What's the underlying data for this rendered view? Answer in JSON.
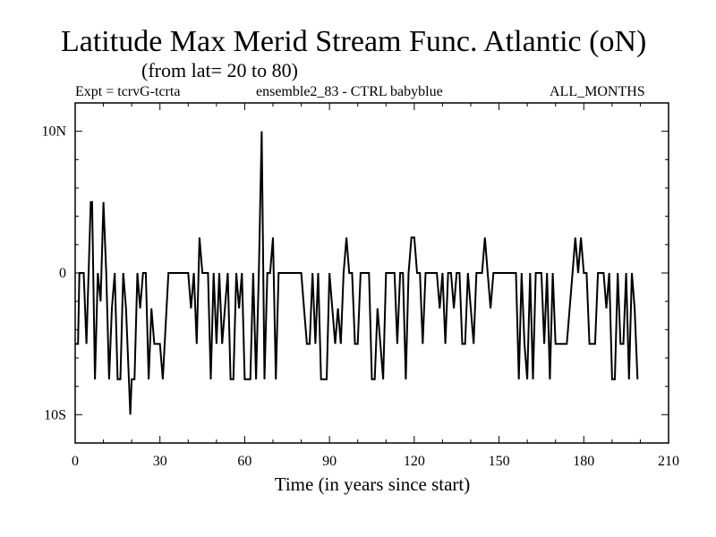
{
  "chart_data": {
    "type": "line",
    "title": "Latitude Max Merid Stream Func. Atlantic (oN)",
    "subtitle": "(from lat= 20 to 80)",
    "header_left": "Expt = tcrvG-tcrta",
    "header_center": "ensemble2_83 - CTRL babyblue",
    "header_right": "ALL_MONTHS",
    "xlabel": "Time (in years since start)",
    "ylabel": "",
    "xlim": [
      0,
      210
    ],
    "ylim": [
      -12,
      12
    ],
    "x_ticks": [
      0,
      30,
      60,
      90,
      120,
      150,
      180,
      210
    ],
    "x_tick_labels": [
      "0",
      "30",
      "60",
      "90",
      "120",
      "150",
      "180",
      "210"
    ],
    "y_ticks": [
      -10,
      0,
      10
    ],
    "y_tick_labels": [
      "10S",
      "0",
      "10N"
    ],
    "series": [
      {
        "name": "tcrvG-tcrta",
        "color": "#000000",
        "points": [
          [
            0,
            -5
          ],
          [
            1,
            -5
          ],
          [
            1.5,
            0
          ],
          [
            3,
            0
          ],
          [
            4,
            -5
          ],
          [
            5.5,
            5
          ],
          [
            6,
            5
          ],
          [
            7,
            -7.5
          ],
          [
            8,
            0
          ],
          [
            9,
            -2
          ],
          [
            10,
            5
          ],
          [
            11,
            0
          ],
          [
            12,
            -7.5
          ],
          [
            13,
            -2.5
          ],
          [
            14,
            0
          ],
          [
            15,
            -7.5
          ],
          [
            16,
            -7.5
          ],
          [
            17,
            0
          ],
          [
            18,
            -2.5
          ],
          [
            19,
            -7.5
          ],
          [
            19.5,
            -10
          ],
          [
            20,
            -7.5
          ],
          [
            21,
            -7.5
          ],
          [
            22,
            0
          ],
          [
            23,
            -2.5
          ],
          [
            24,
            0
          ],
          [
            25,
            0
          ],
          [
            26,
            -7.5
          ],
          [
            27,
            -2.5
          ],
          [
            28,
            -5
          ],
          [
            30,
            -5
          ],
          [
            31,
            -7.5
          ],
          [
            33,
            0
          ],
          [
            35,
            0
          ],
          [
            37,
            0
          ],
          [
            38,
            0
          ],
          [
            39,
            0
          ],
          [
            40,
            0
          ],
          [
            41,
            -2.5
          ],
          [
            42,
            0
          ],
          [
            43,
            -5
          ],
          [
            44,
            2.5
          ],
          [
            45,
            0
          ],
          [
            46,
            0
          ],
          [
            47,
            0
          ],
          [
            48,
            -7.5
          ],
          [
            49,
            0
          ],
          [
            50,
            -5
          ],
          [
            51,
            0
          ],
          [
            52,
            -5
          ],
          [
            53,
            -2.5
          ],
          [
            54,
            0
          ],
          [
            55,
            -7.5
          ],
          [
            56,
            -7.5
          ],
          [
            57,
            0
          ],
          [
            58,
            -2.5
          ],
          [
            59,
            0
          ],
          [
            60,
            -7.5
          ],
          [
            62,
            -7.5
          ],
          [
            63,
            0
          ],
          [
            64,
            -7.5
          ],
          [
            65,
            0
          ],
          [
            66,
            10
          ],
          [
            67,
            -7.5
          ],
          [
            68,
            0
          ],
          [
            69,
            0
          ],
          [
            70,
            2.5
          ],
          [
            71,
            -7.5
          ],
          [
            72,
            0
          ],
          [
            74,
            0
          ],
          [
            76,
            0
          ],
          [
            78,
            0
          ],
          [
            80,
            0
          ],
          [
            81,
            -2.5
          ],
          [
            82,
            -5
          ],
          [
            83,
            -5
          ],
          [
            84,
            0
          ],
          [
            85,
            -5
          ],
          [
            86,
            0
          ],
          [
            87,
            -7.5
          ],
          [
            89,
            -7.5
          ],
          [
            90,
            0
          ],
          [
            91,
            -2.5
          ],
          [
            92,
            -5
          ],
          [
            93,
            -2.5
          ],
          [
            94,
            -5
          ],
          [
            95,
            0
          ],
          [
            96,
            2.5
          ],
          [
            97,
            0
          ],
          [
            98,
            0
          ],
          [
            99,
            -5
          ],
          [
            100,
            -5
          ],
          [
            101,
            0
          ],
          [
            102,
            0
          ],
          [
            103,
            0
          ],
          [
            104,
            0
          ],
          [
            105,
            -7.5
          ],
          [
            106,
            -7.5
          ],
          [
            107,
            -2.5
          ],
          [
            108,
            -5
          ],
          [
            109,
            -7.5
          ],
          [
            110,
            0
          ],
          [
            111,
            0
          ],
          [
            112,
            0
          ],
          [
            113,
            0
          ],
          [
            114,
            -5
          ],
          [
            115,
            0
          ],
          [
            116,
            0
          ],
          [
            117,
            -7.5
          ],
          [
            118,
            0
          ],
          [
            119,
            2.5
          ],
          [
            120,
            2.5
          ],
          [
            121,
            0
          ],
          [
            122,
            0
          ],
          [
            123,
            -5
          ],
          [
            124,
            0
          ],
          [
            126,
            0
          ],
          [
            128,
            0
          ],
          [
            129,
            -2.5
          ],
          [
            130,
            0
          ],
          [
            131,
            -5
          ],
          [
            132,
            0
          ],
          [
            133,
            0
          ],
          [
            134,
            -2.5
          ],
          [
            135,
            0
          ],
          [
            136,
            0
          ],
          [
            137,
            -5
          ],
          [
            138,
            -5
          ],
          [
            139,
            0
          ],
          [
            140,
            -2.5
          ],
          [
            141,
            -5
          ],
          [
            142,
            0
          ],
          [
            143,
            0
          ],
          [
            144,
            0
          ],
          [
            145,
            2.5
          ],
          [
            146,
            0
          ],
          [
            147,
            -2.5
          ],
          [
            148,
            0
          ],
          [
            150,
            0
          ],
          [
            152,
            0
          ],
          [
            154,
            0
          ],
          [
            156,
            0
          ],
          [
            157,
            -7.5
          ],
          [
            158,
            0
          ],
          [
            159,
            -5
          ],
          [
            160,
            -7.5
          ],
          [
            161,
            0
          ],
          [
            162,
            -7.5
          ],
          [
            163,
            0
          ],
          [
            164,
            0
          ],
          [
            165,
            0
          ],
          [
            166,
            -5
          ],
          [
            167,
            0
          ],
          [
            168,
            -7.5
          ],
          [
            169,
            0
          ],
          [
            170,
            -5
          ],
          [
            172,
            -5
          ],
          [
            174,
            -5
          ],
          [
            176,
            0
          ],
          [
            177,
            2.5
          ],
          [
            178,
            0
          ],
          [
            179,
            2.5
          ],
          [
            180,
            0
          ],
          [
            181,
            0
          ],
          [
            182,
            -5
          ],
          [
            184,
            -5
          ],
          [
            185,
            0
          ],
          [
            186,
            0
          ],
          [
            187,
            0
          ],
          [
            188,
            -2.5
          ],
          [
            189,
            0
          ],
          [
            190,
            -7.5
          ],
          [
            191,
            -7.5
          ],
          [
            192,
            0
          ],
          [
            193,
            -5
          ],
          [
            194,
            -5
          ],
          [
            195,
            0
          ],
          [
            196,
            -7.5
          ],
          [
            197,
            0
          ],
          [
            198,
            -2.5
          ],
          [
            199,
            -7.5
          ]
        ]
      }
    ]
  }
}
